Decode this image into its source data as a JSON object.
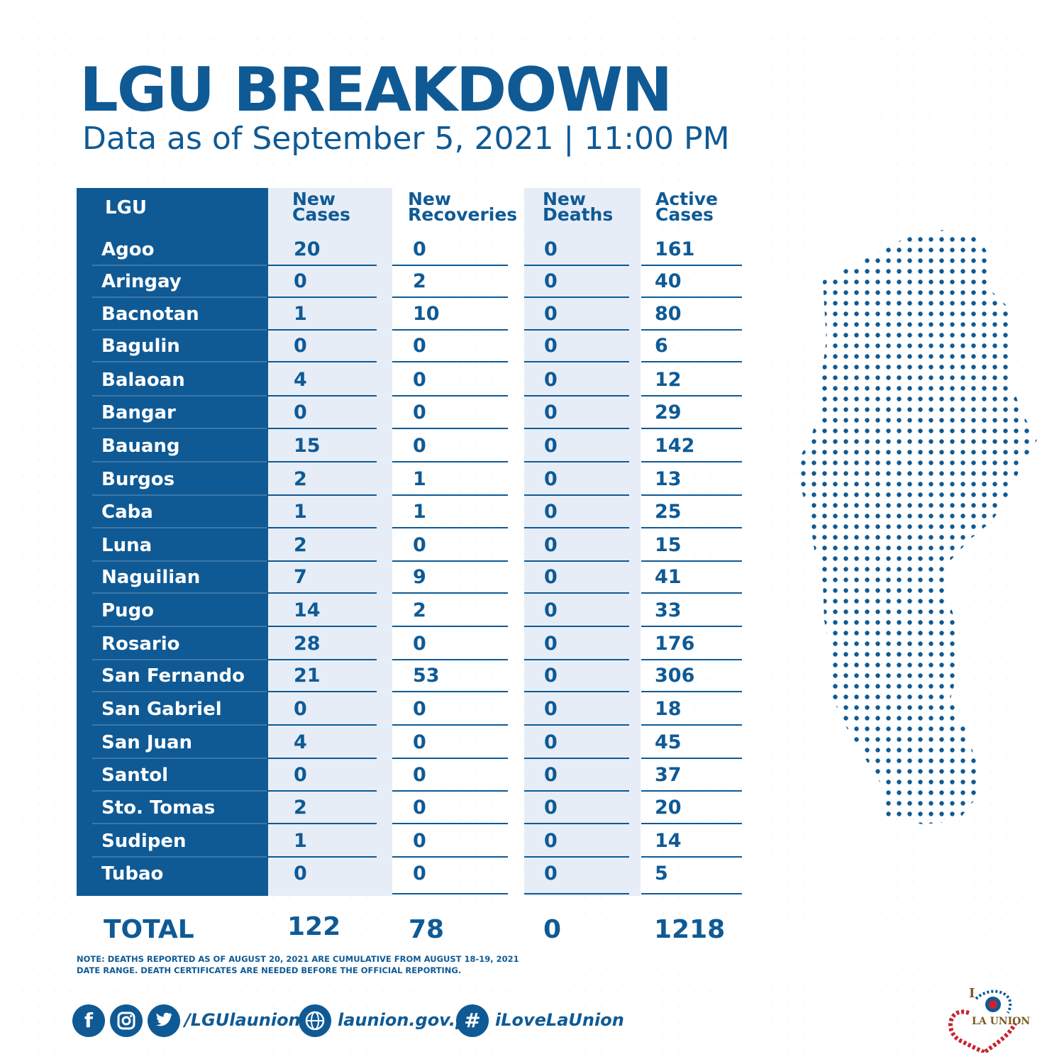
{
  "title": "LGU BREAKDOWN",
  "subtitle": "Data as of September 5, 2021 | 11:00 PM",
  "headers": {
    "lgu": "LGU",
    "new_cases_1": "New",
    "new_cases_2": "Cases",
    "new_recoveries_1": "New",
    "new_recoveries_2": "Recoveries",
    "new_deaths_1": "New",
    "new_deaths_2": "Deaths",
    "active_cases_1": "Active",
    "active_cases_2": "Cases"
  },
  "rows": [
    {
      "lgu": "Agoo",
      "new_cases": "20",
      "new_recoveries": "0",
      "new_deaths": "0",
      "active_cases": "161"
    },
    {
      "lgu": "Aringay",
      "new_cases": "0",
      "new_recoveries": "2",
      "new_deaths": "0",
      "active_cases": "40"
    },
    {
      "lgu": "Bacnotan",
      "new_cases": "1",
      "new_recoveries": "10",
      "new_deaths": "0",
      "active_cases": "80"
    },
    {
      "lgu": "Bagulin",
      "new_cases": "0",
      "new_recoveries": "0",
      "new_deaths": "0",
      "active_cases": "6"
    },
    {
      "lgu": "Balaoan",
      "new_cases": "4",
      "new_recoveries": "0",
      "new_deaths": "0",
      "active_cases": "12"
    },
    {
      "lgu": "Bangar",
      "new_cases": "0",
      "new_recoveries": "0",
      "new_deaths": "0",
      "active_cases": "29"
    },
    {
      "lgu": "Bauang",
      "new_cases": "15",
      "new_recoveries": "0",
      "new_deaths": "0",
      "active_cases": "142"
    },
    {
      "lgu": "Burgos",
      "new_cases": "2",
      "new_recoveries": "1",
      "new_deaths": "0",
      "active_cases": "13"
    },
    {
      "lgu": "Caba",
      "new_cases": "1",
      "new_recoveries": "1",
      "new_deaths": "0",
      "active_cases": "25"
    },
    {
      "lgu": "Luna",
      "new_cases": "2",
      "new_recoveries": "0",
      "new_deaths": "0",
      "active_cases": "15"
    },
    {
      "lgu": "Naguilian",
      "new_cases": "7",
      "new_recoveries": "9",
      "new_deaths": "0",
      "active_cases": "41"
    },
    {
      "lgu": "Pugo",
      "new_cases": "14",
      "new_recoveries": "2",
      "new_deaths": "0",
      "active_cases": "33"
    },
    {
      "lgu": "Rosario",
      "new_cases": "28",
      "new_recoveries": "0",
      "new_deaths": "0",
      "active_cases": "176"
    },
    {
      "lgu": "San Fernando",
      "new_cases": "21",
      "new_recoveries": "53",
      "new_deaths": "0",
      "active_cases": "306"
    },
    {
      "lgu": "San Gabriel",
      "new_cases": "0",
      "new_recoveries": "0",
      "new_deaths": "0",
      "active_cases": "18"
    },
    {
      "lgu": "San Juan",
      "new_cases": "4",
      "new_recoveries": "0",
      "new_deaths": "0",
      "active_cases": "45"
    },
    {
      "lgu": "Santol",
      "new_cases": "0",
      "new_recoveries": "0",
      "new_deaths": "0",
      "active_cases": "37"
    },
    {
      "lgu": "Sto. Tomas",
      "new_cases": "2",
      "new_recoveries": "0",
      "new_deaths": "0",
      "active_cases": "20"
    },
    {
      "lgu": "Sudipen",
      "new_cases": "1",
      "new_recoveries": "0",
      "new_deaths": "0",
      "active_cases": "14"
    },
    {
      "lgu": "Tubao",
      "new_cases": "0",
      "new_recoveries": "0",
      "new_deaths": "0",
      "active_cases": "5"
    }
  ],
  "totals": {
    "label": "TOTAL",
    "new_cases": "122",
    "new_recoveries": "78",
    "new_deaths": "0",
    "active_cases": "1218"
  },
  "note_line1": "NOTE: DEATHS REPORTED AS OF AUGUST 20, 2021 ARE CUMULATIVE  FROM AUGUST 18-19, 2021",
  "note_line2": "DATE RANGE. DEATH CERTIFICATES ARE NEEDED BEFORE THE OFFICIAL REPORTING.",
  "footer": {
    "social_handle": "/LGUlaunion",
    "website": "launion.gov.ph",
    "hashtag": "iLoveLaUnion"
  },
  "logo": {
    "top_letter": "I",
    "text": "LA UNION"
  },
  "colors": {
    "primary": "#0f5a95",
    "light_column": "#e6edf7",
    "logo_red": "#c8242f"
  }
}
